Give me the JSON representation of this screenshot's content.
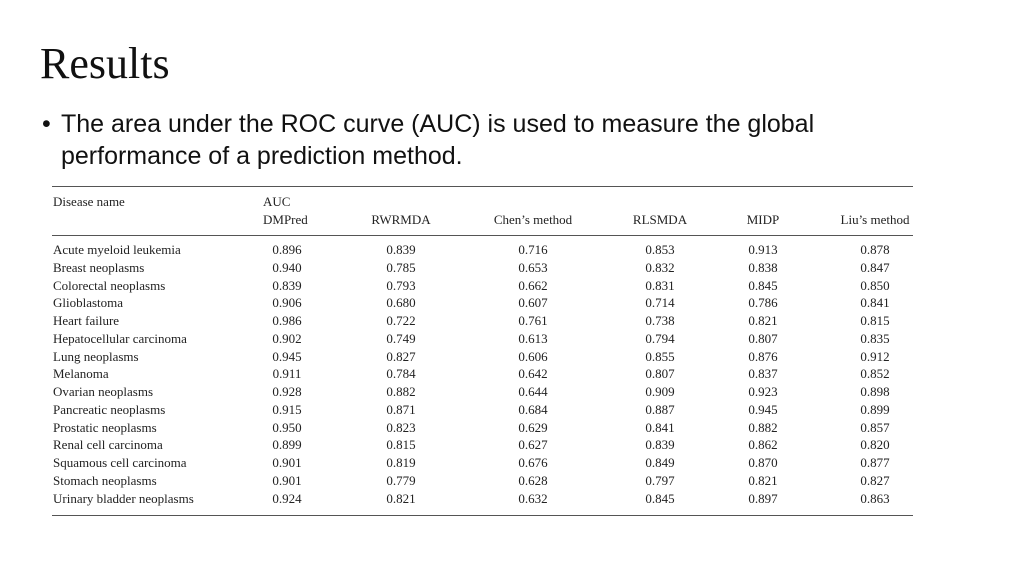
{
  "title": "Results",
  "bullet": "The area under the ROC curve (AUC) is used to measure the global performance of a prediction method.",
  "table": {
    "group_label": "AUC",
    "columns": [
      "Disease name",
      "DMPred",
      "RWRMDA",
      "Chen’s method",
      "RLSMDA",
      "MIDP",
      "Liu’s method"
    ],
    "rows": [
      [
        "Acute myeloid leukemia",
        "0.896",
        "0.839",
        "0.716",
        "0.853",
        "0.913",
        "0.878"
      ],
      [
        "Breast neoplasms",
        "0.940",
        "0.785",
        "0.653",
        "0.832",
        "0.838",
        "0.847"
      ],
      [
        "Colorectal neoplasms",
        "0.839",
        "0.793",
        "0.662",
        "0.831",
        "0.845",
        "0.850"
      ],
      [
        "Glioblastoma",
        "0.906",
        "0.680",
        "0.607",
        "0.714",
        "0.786",
        "0.841"
      ],
      [
        "Heart failure",
        "0.986",
        "0.722",
        "0.761",
        "0.738",
        "0.821",
        "0.815"
      ],
      [
        "Hepatocellular carcinoma",
        "0.902",
        "0.749",
        "0.613",
        "0.794",
        "0.807",
        "0.835"
      ],
      [
        "Lung neoplasms",
        "0.945",
        "0.827",
        "0.606",
        "0.855",
        "0.876",
        "0.912"
      ],
      [
        "Melanoma",
        "0.911",
        "0.784",
        "0.642",
        "0.807",
        "0.837",
        "0.852"
      ],
      [
        "Ovarian neoplasms",
        "0.928",
        "0.882",
        "0.644",
        "0.909",
        "0.923",
        "0.898"
      ],
      [
        "Pancreatic neoplasms",
        "0.915",
        "0.871",
        "0.684",
        "0.887",
        "0.945",
        "0.899"
      ],
      [
        "Prostatic neoplasms",
        "0.950",
        "0.823",
        "0.629",
        "0.841",
        "0.882",
        "0.857"
      ],
      [
        "Renal cell carcinoma",
        "0.899",
        "0.815",
        "0.627",
        "0.839",
        "0.862",
        "0.820"
      ],
      [
        "Squamous cell carcinoma",
        "0.901",
        "0.819",
        "0.676",
        "0.849",
        "0.870",
        "0.877"
      ],
      [
        "Stomach neoplasms",
        "0.901",
        "0.779",
        "0.628",
        "0.797",
        "0.821",
        "0.827"
      ],
      [
        "Urinary bladder neoplasms",
        "0.924",
        "0.821",
        "0.632",
        "0.845",
        "0.897",
        "0.863"
      ]
    ]
  }
}
